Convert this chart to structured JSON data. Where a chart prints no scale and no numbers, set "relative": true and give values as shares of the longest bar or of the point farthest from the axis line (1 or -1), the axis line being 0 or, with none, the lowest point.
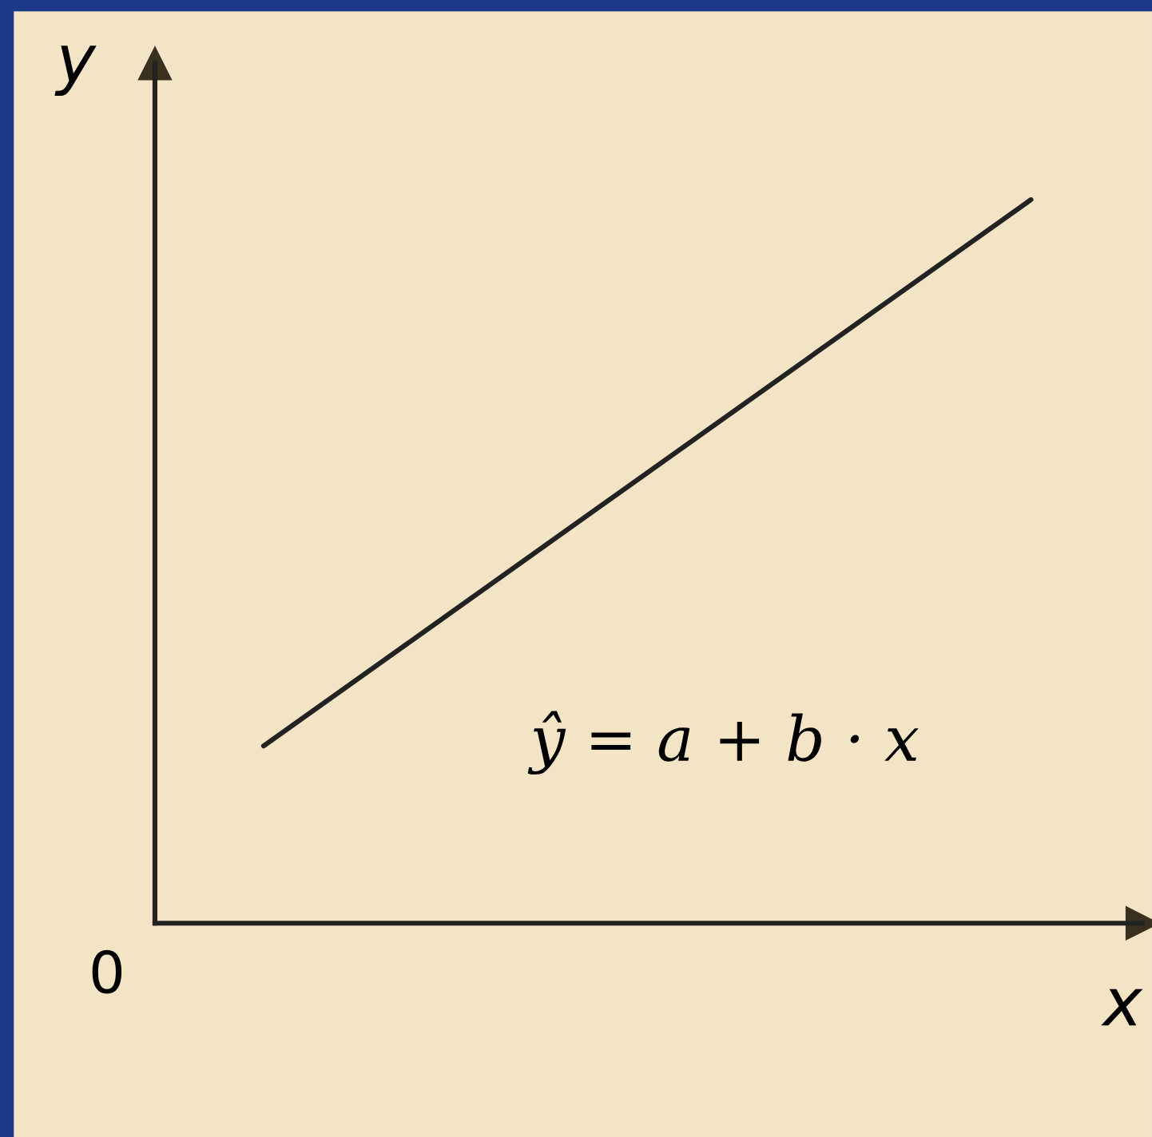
{
  "chart_data": {
    "type": "line",
    "relative": true,
    "xlabel": "x",
    "ylabel": "y",
    "categories": [
      null,
      null
    ],
    "series": [
      {
        "color": "#222222",
        "values": [
          0.245,
          1
        ]
      }
    ],
    "annotations": [
      "0",
      "ŷ = a + b · x"
    ],
    "marker": "none",
    "line_style": "solid",
    "grid": false
  }
}
